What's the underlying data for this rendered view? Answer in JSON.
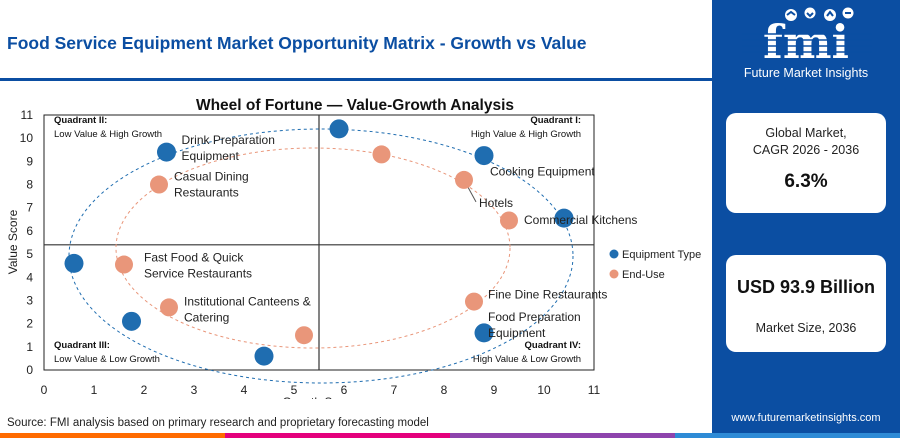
{
  "header": {
    "title": "Food Service Equipment Market Opportunity Matrix - Growth vs Value"
  },
  "footer": {
    "source": "Source: FMI analysis based on primary research and proprietary forecasting model"
  },
  "sidebar": {
    "logo_text": "fmi",
    "logo_tagline": "Future Market Insights",
    "global_market_label": "Global Market,",
    "cagr_period": "CAGR 2026 - 2036",
    "cagr_value": "6.3%",
    "market_size_value": "USD 93.9 Billion",
    "market_size_label": "Market Size, 2036",
    "website": "www.futuremarketinsights.com"
  },
  "colors": {
    "brand_blue": "#0b4ea2",
    "equipment": "#1f6db0",
    "end_use": "#e9967a",
    "bar": [
      "#ff6b00",
      "#e4007c",
      "#8e44ad",
      "#2e8bd6"
    ]
  },
  "chart_data": {
    "type": "scatter",
    "title": "Wheel of Fortune — Value-Growth Analysis",
    "xlabel": "Growth Score",
    "ylabel": "Value Score",
    "xlim": [
      0,
      11
    ],
    "ylim": [
      0,
      11
    ],
    "xticks": [
      "0",
      "1",
      "2",
      "3",
      "4",
      "5",
      "6",
      "7",
      "8",
      "9",
      "10",
      "11"
    ],
    "yticks": [
      "0",
      "1",
      "2",
      "3",
      "4",
      "5",
      "6",
      "7",
      "8",
      "9",
      "10",
      "11"
    ],
    "divider": {
      "x": 5.5,
      "y": 5.4
    },
    "legend_position": "right",
    "quadrants": [
      {
        "title": "Quadrant II:",
        "subtitle": "Low Value & High Growth",
        "position": "top-left"
      },
      {
        "title": "Quadrant I:",
        "subtitle": "High Value & High Growth",
        "position": "top-right"
      },
      {
        "title": "Quadrant III:",
        "subtitle": "Low Value & Low Growth",
        "position": "bottom-left"
      },
      {
        "title": "Quadrant IV:",
        "subtitle": "High Value & Low Growth",
        "position": "bottom-right"
      }
    ],
    "series": [
      {
        "name": "Equipment Type",
        "color": "#1f6db0",
        "points": [
          {
            "x": 2.45,
            "y": 9.4,
            "label": [
              "Drink Preparation",
              "Equipment"
            ]
          },
          {
            "x": 5.9,
            "y": 10.4,
            "label": []
          },
          {
            "x": 8.8,
            "y": 9.25,
            "label": [
              "Cooking Equipment"
            ]
          },
          {
            "x": 10.4,
            "y": 6.55,
            "label": [
              "Commercial Kitchens"
            ]
          },
          {
            "x": 0.6,
            "y": 4.6,
            "label": []
          },
          {
            "x": 1.75,
            "y": 2.1,
            "label": []
          },
          {
            "x": 4.4,
            "y": 0.6,
            "label": []
          },
          {
            "x": 8.8,
            "y": 1.6,
            "label": [
              "Food Preparation",
              "Equipment"
            ]
          }
        ]
      },
      {
        "name": "End-Use",
        "color": "#e9967a",
        "points": [
          {
            "x": 2.3,
            "y": 8.0,
            "label": [
              "Casual Dining",
              "Restaurants"
            ]
          },
          {
            "x": 6.75,
            "y": 9.3,
            "label": []
          },
          {
            "x": 8.4,
            "y": 8.2,
            "label": [
              "Hotels"
            ]
          },
          {
            "x": 9.3,
            "y": 6.45,
            "label": []
          },
          {
            "x": 1.6,
            "y": 4.55,
            "label": [
              "Fast Food & Quick",
              "Service Restaurants"
            ]
          },
          {
            "x": 2.5,
            "y": 2.7,
            "label": [
              "Institutional Canteens &",
              "Catering"
            ]
          },
          {
            "x": 5.2,
            "y": 1.5,
            "label": []
          },
          {
            "x": 8.6,
            "y": 2.95,
            "label": [
              "Fine Dine Restaurants"
            ]
          }
        ]
      }
    ]
  }
}
